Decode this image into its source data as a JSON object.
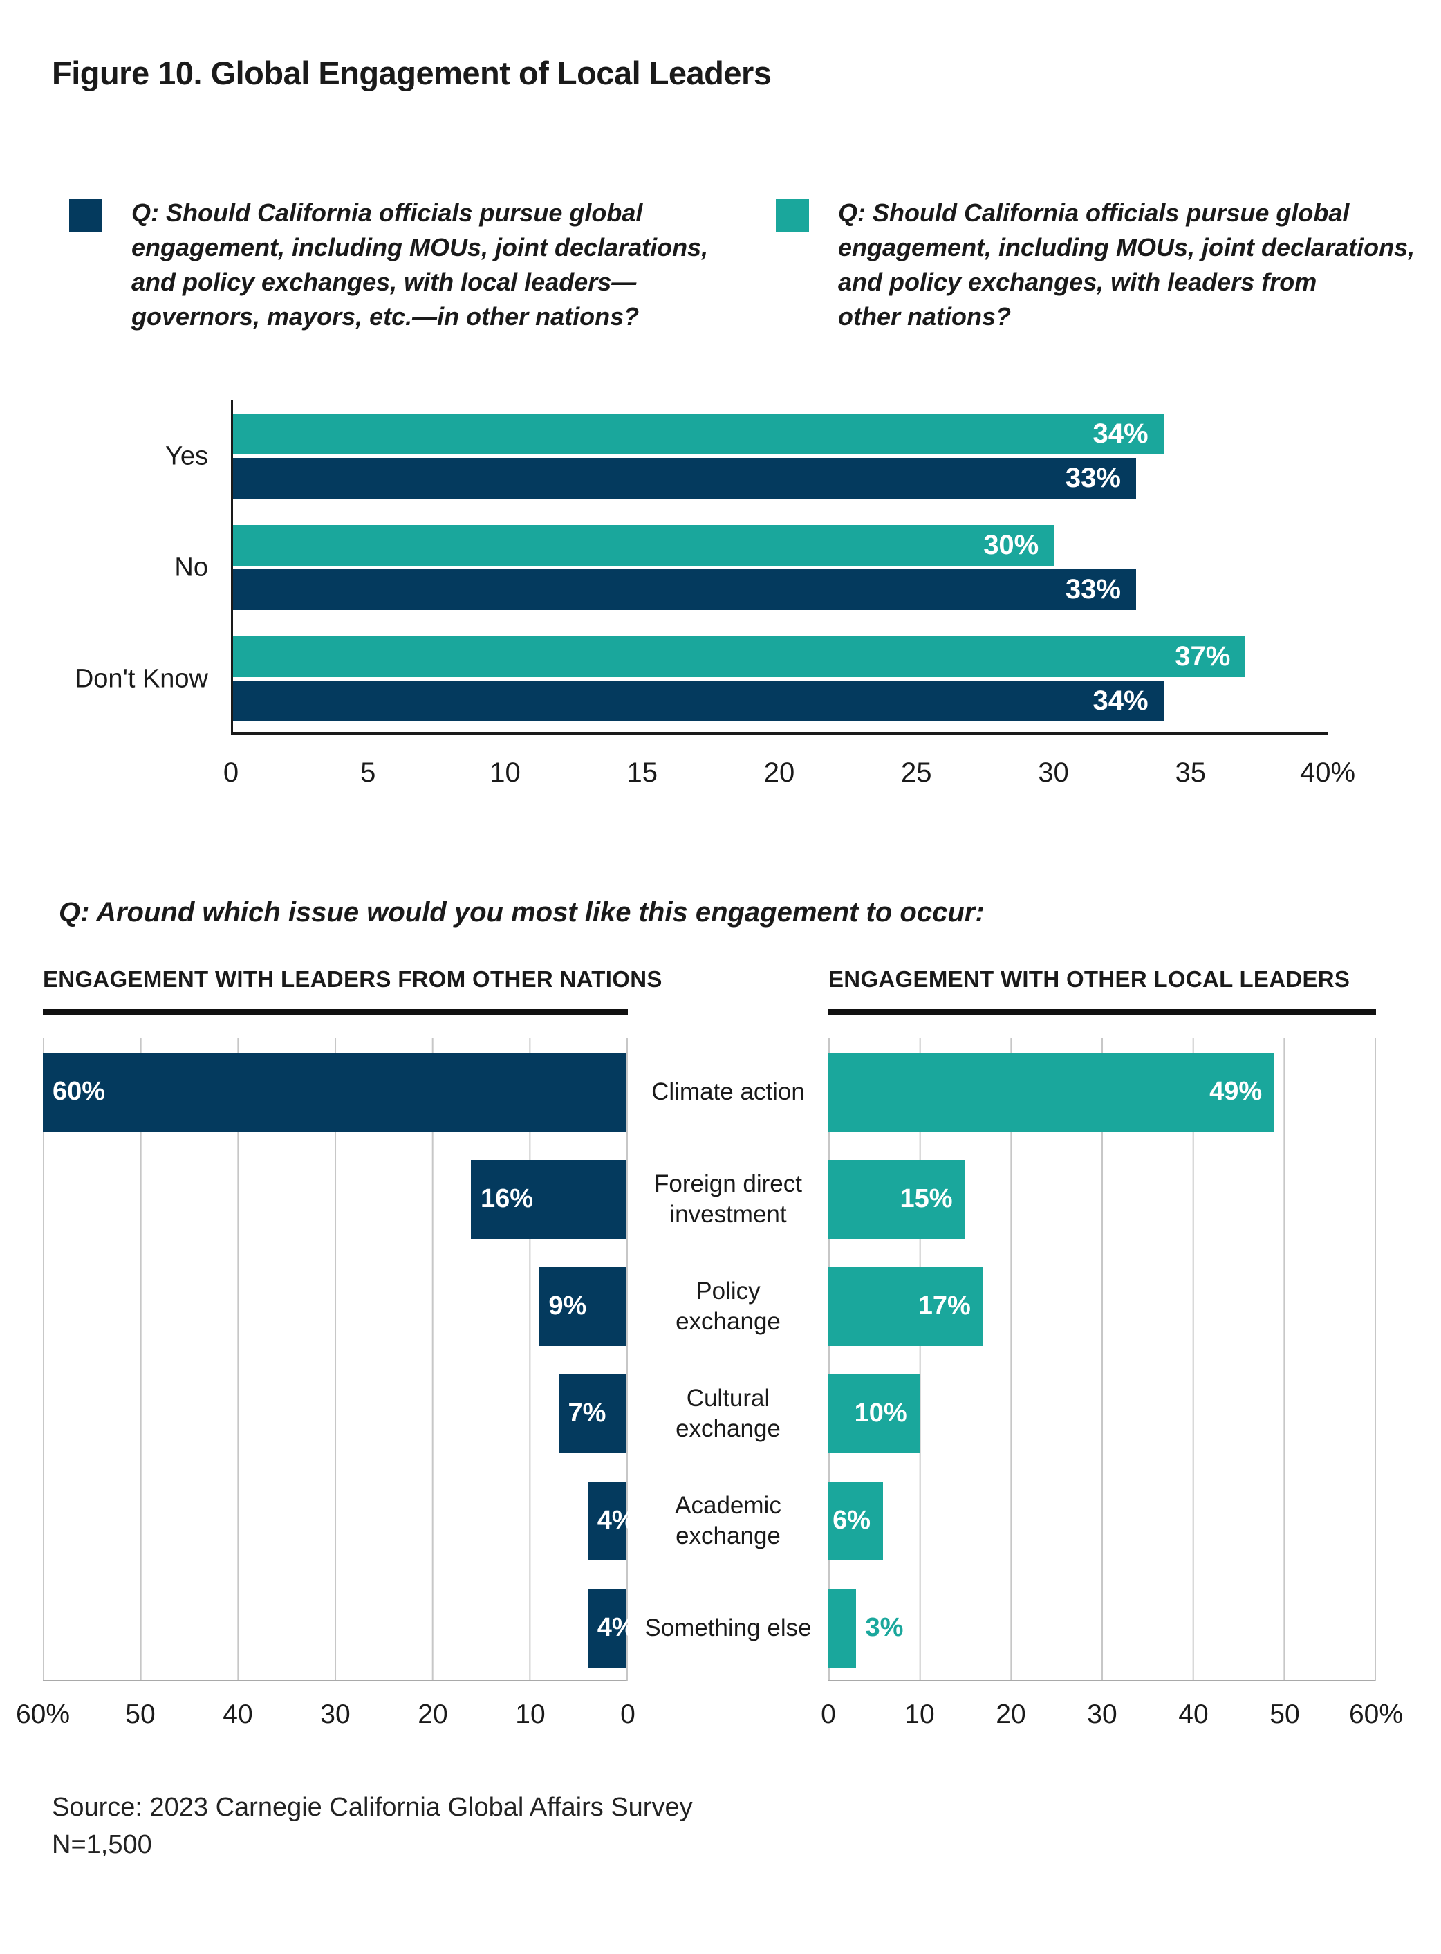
{
  "title": "Figure 10. Global Engagement of Local Leaders",
  "colors": {
    "navy": "#043A5E",
    "teal": "#1AA79C",
    "grid": "#C7C7C7",
    "axis_gray": "#A9A9A9"
  },
  "legend": [
    {
      "color": "#043A5E",
      "text": "Q: Should California officials pursue global\nengagement, including MOUs, joint declarations,\nand policy exchanges, with local leaders—\ngovernors, mayors, etc.—in other nations?"
    },
    {
      "color": "#1AA79C",
      "text": "Q: Should California officials pursue global\nengagement, including MOUs, joint declarations,\nand policy exchanges, with leaders from\nother nations?"
    }
  ],
  "question2": "Q: Around which issue would you most like this engagement to occur:",
  "source_line1": "Source: 2023 Carnegie California Global Affairs Survey",
  "source_line2": "N=1,500",
  "chart_data": [
    {
      "type": "bar",
      "orientation": "horizontal",
      "title": "",
      "categories": [
        "Yes",
        "No",
        "Don't Know"
      ],
      "series": [
        {
          "name": "pursue global engagement with leaders from other nations",
          "color": "#1AA79C",
          "values": [
            34,
            30,
            37
          ]
        },
        {
          "name": "pursue global engagement with local leaders—governors, mayors, etc.—in other nations",
          "color": "#043A5E",
          "values": [
            33,
            33,
            34
          ]
        }
      ],
      "xlim": [
        0,
        40
      ],
      "tick_labels": [
        "0",
        "5",
        "10",
        "15",
        "20",
        "25",
        "30",
        "35",
        "40%"
      ],
      "grid": false,
      "value_label_suffix": "%"
    },
    {
      "type": "bar",
      "orientation": "horizontal-reversed",
      "title": "ENGAGEMENT WITH LEADERS FROM OTHER NATIONS",
      "categories": [
        "Climate action",
        "Foreign direct\ninvestment",
        "Policy\nexchange",
        "Cultural\nexchange",
        "Academic\nexchange",
        "Something else"
      ],
      "values": [
        60,
        16,
        9,
        7,
        4,
        4
      ],
      "color": "#043A5E",
      "xlim": [
        0,
        60
      ],
      "tick_labels": [
        "60%",
        "50",
        "40",
        "30",
        "20",
        "10",
        "0"
      ],
      "grid": true,
      "value_label_suffix": "%"
    },
    {
      "type": "bar",
      "orientation": "horizontal",
      "title": "ENGAGEMENT WITH OTHER LOCAL LEADERS",
      "categories": [
        "Climate action",
        "Foreign direct\ninvestment",
        "Policy\nexchange",
        "Cultural\nexchange",
        "Academic\nexchange",
        "Something else"
      ],
      "values": [
        49,
        15,
        17,
        10,
        6,
        3
      ],
      "color": "#1AA79C",
      "outside_labels": [
        false,
        false,
        false,
        false,
        false,
        true
      ],
      "xlim": [
        0,
        60
      ],
      "tick_labels": [
        "0",
        "10",
        "20",
        "30",
        "40",
        "50",
        "60%"
      ],
      "grid": true,
      "value_label_suffix": "%"
    }
  ]
}
